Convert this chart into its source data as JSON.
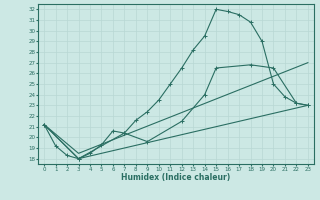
{
  "xlabel": "Humidex (Indice chaleur)",
  "bg_color": "#cce8e4",
  "line_color": "#2a6e62",
  "grid_color": "#b8d8d4",
  "xlim": [
    -0.5,
    23.5
  ],
  "ylim": [
    17.5,
    32.5
  ],
  "yticks": [
    18,
    19,
    20,
    21,
    22,
    23,
    24,
    25,
    26,
    27,
    28,
    29,
    30,
    31,
    32
  ],
  "xticks": [
    0,
    1,
    2,
    3,
    4,
    5,
    6,
    7,
    8,
    9,
    10,
    11,
    12,
    13,
    14,
    15,
    16,
    17,
    18,
    19,
    20,
    21,
    22,
    23
  ],
  "curve1_x": [
    0,
    1,
    2,
    3,
    4,
    5,
    6,
    7,
    8,
    9,
    10,
    11,
    12,
    13,
    14,
    15,
    16,
    17,
    18,
    19,
    20,
    21,
    22,
    23
  ],
  "curve1_y": [
    21.2,
    19.2,
    18.3,
    18.0,
    18.5,
    19.3,
    20.6,
    20.4,
    21.6,
    22.4,
    23.5,
    25.0,
    26.5,
    28.2,
    29.5,
    32.0,
    31.8,
    31.5,
    30.8,
    29.0,
    25.0,
    23.8,
    23.2,
    23.0
  ],
  "curve2_x": [
    0,
    3,
    7,
    9,
    12,
    14,
    15,
    18,
    20,
    22,
    23
  ],
  "curve2_y": [
    21.2,
    18.0,
    20.4,
    19.6,
    21.5,
    24.0,
    26.5,
    26.8,
    26.5,
    23.2,
    23.0
  ],
  "line3_x": [
    0,
    3,
    23
  ],
  "line3_y": [
    21.2,
    18.0,
    23.0
  ],
  "line4_x": [
    0,
    3,
    23
  ],
  "line4_y": [
    21.2,
    18.5,
    27.0
  ]
}
